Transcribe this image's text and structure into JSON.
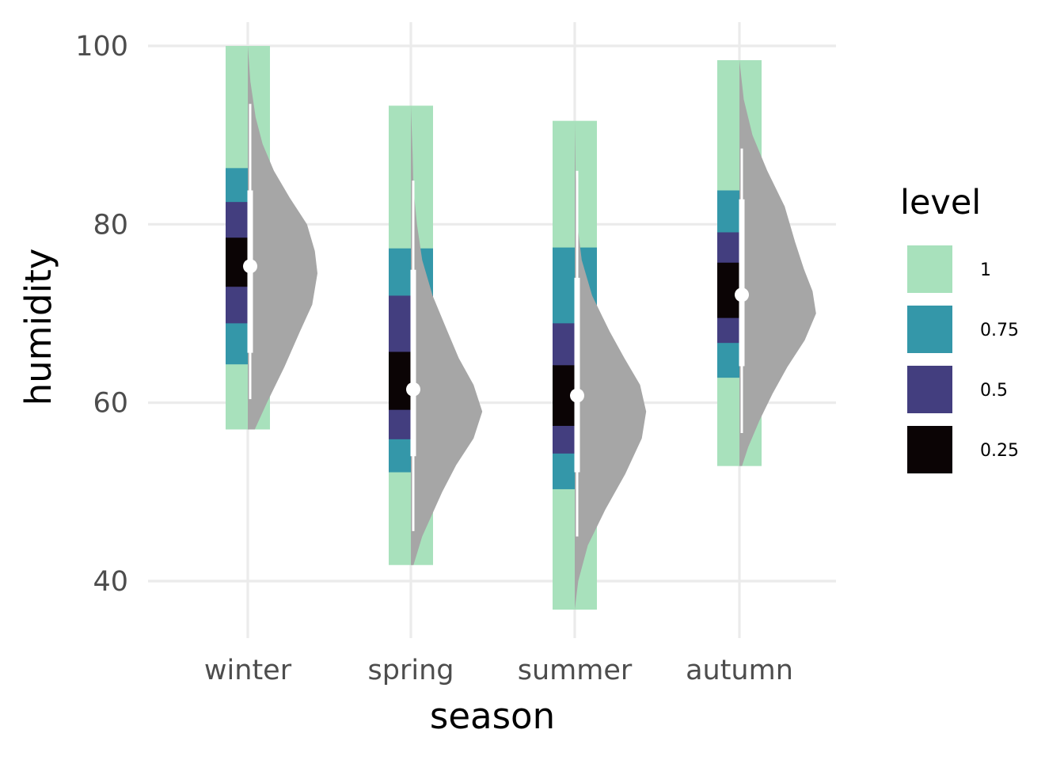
{
  "chart_data": {
    "type": "area",
    "xlabel": "season",
    "ylabel": "humidity",
    "ylim": [
      34.5,
      102.5
    ],
    "yticks": [
      40,
      60,
      80,
      100
    ],
    "categories": [
      "winter",
      "spring",
      "summer",
      "autumn"
    ],
    "grid": true,
    "legend": {
      "title": "level",
      "position": "right",
      "items": [
        {
          "label": "1",
          "color": "#a8e1bc"
        },
        {
          "label": "0.75",
          "color": "#3497a9"
        },
        {
          "label": "0.5",
          "color": "#433e7f"
        },
        {
          "label": "0.25",
          "color": "#0b0405"
        }
      ]
    },
    "interval_levels": [
      "1",
      "0.75",
      "0.5",
      "0.25"
    ],
    "intervals": [
      {
        "category": "winter",
        "levels": {
          "1": [
            57.0,
            100.0
          ],
          "0.75": [
            64.3,
            86.3
          ],
          "0.5": [
            68.9,
            82.5
          ],
          "0.25": [
            73.0,
            78.5
          ]
        }
      },
      {
        "category": "spring",
        "levels": {
          "1": [
            41.8,
            93.3
          ],
          "0.75": [
            52.2,
            77.3
          ],
          "0.5": [
            55.9,
            72.0
          ],
          "0.25": [
            59.2,
            65.7
          ]
        }
      },
      {
        "category": "summer",
        "levels": {
          "1": [
            36.8,
            91.6
          ],
          "0.75": [
            50.3,
            77.4
          ],
          "0.5": [
            54.3,
            68.9
          ],
          "0.25": [
            57.4,
            64.2
          ]
        }
      },
      {
        "category": "autumn",
        "levels": {
          "1": [
            52.9,
            98.4
          ],
          "0.75": [
            62.8,
            83.8
          ],
          "0.5": [
            66.7,
            79.1
          ],
          "0.25": [
            69.5,
            75.7
          ]
        }
      }
    ],
    "point_intervals": [
      {
        "category": "winter",
        "median": 75.3,
        "interval_inner": [
          65.6,
          83.8
        ],
        "interval_outer": [
          60.4,
          93.5
        ]
      },
      {
        "category": "spring",
        "median": 61.5,
        "interval_inner": [
          54.0,
          74.9
        ],
        "interval_outer": [
          45.6,
          84.9
        ]
      },
      {
        "category": "summer",
        "median": 60.8,
        "interval_inner": [
          52.2,
          74.0
        ],
        "interval_outer": [
          45.0,
          86.0
        ]
      },
      {
        "category": "autumn",
        "median": 72.1,
        "interval_inner": [
          64.1,
          82.8
        ],
        "interval_outer": [
          56.6,
          88.5
        ]
      }
    ],
    "densities": [
      {
        "category": "winter",
        "color": "#a6a6a6",
        "points": [
          [
            57.0,
            0.08
          ],
          [
            60.0,
            0.22
          ],
          [
            64.0,
            0.42
          ],
          [
            68.0,
            0.6
          ],
          [
            71.0,
            0.74
          ],
          [
            74.5,
            0.8
          ],
          [
            77.0,
            0.77
          ],
          [
            80.0,
            0.68
          ],
          [
            83.0,
            0.48
          ],
          [
            86.0,
            0.3
          ],
          [
            89.0,
            0.17
          ],
          [
            92.0,
            0.09
          ],
          [
            96.0,
            0.03
          ],
          [
            100.0,
            0.0
          ]
        ]
      },
      {
        "category": "spring",
        "color": "#a6a6a6",
        "points": [
          [
            41.8,
            0.03
          ],
          [
            45.0,
            0.13
          ],
          [
            50.0,
            0.36
          ],
          [
            53.0,
            0.52
          ],
          [
            56.0,
            0.72
          ],
          [
            59.0,
            0.82
          ],
          [
            62.0,
            0.72
          ],
          [
            65.0,
            0.55
          ],
          [
            68.0,
            0.42
          ],
          [
            72.0,
            0.25
          ],
          [
            76.0,
            0.13
          ],
          [
            80.0,
            0.07
          ],
          [
            84.0,
            0.03
          ],
          [
            88.0,
            0.02
          ],
          [
            93.3,
            0.0
          ]
        ]
      },
      {
        "category": "summer",
        "color": "#a6a6a6",
        "points": [
          [
            36.8,
            0.0
          ],
          [
            40.0,
            0.04
          ],
          [
            44.0,
            0.15
          ],
          [
            48.0,
            0.35
          ],
          [
            52.0,
            0.58
          ],
          [
            56.0,
            0.77
          ],
          [
            59.0,
            0.82
          ],
          [
            62.0,
            0.75
          ],
          [
            65.0,
            0.57
          ],
          [
            68.0,
            0.4
          ],
          [
            72.0,
            0.2
          ],
          [
            76.0,
            0.08
          ],
          [
            80.0,
            0.03
          ],
          [
            86.0,
            0.01
          ],
          [
            91.6,
            0.0
          ]
        ]
      },
      {
        "category": "autumn",
        "color": "#a6a6a6",
        "points": [
          [
            52.9,
            0.03
          ],
          [
            55.0,
            0.1
          ],
          [
            58.0,
            0.23
          ],
          [
            61.0,
            0.38
          ],
          [
            64.0,
            0.55
          ],
          [
            67.0,
            0.75
          ],
          [
            70.0,
            0.88
          ],
          [
            72.5,
            0.84
          ],
          [
            75.0,
            0.74
          ],
          [
            78.0,
            0.64
          ],
          [
            82.0,
            0.52
          ],
          [
            86.0,
            0.32
          ],
          [
            90.0,
            0.15
          ],
          [
            94.0,
            0.05
          ],
          [
            98.4,
            0.0
          ]
        ]
      }
    ]
  }
}
